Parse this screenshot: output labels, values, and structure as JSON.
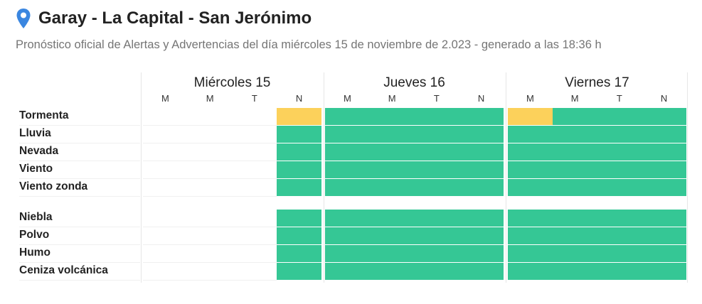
{
  "header": {
    "title": "Garay - La Capital - San Jerónimo",
    "subtitle": "Pronóstico oficial de Alertas y Advertencias del día miércoles 15 de noviembre de 2.023 - generado a las 18:36 h",
    "pin_icon": "map-pin-icon"
  },
  "colors": {
    "green": "#35c795",
    "yellow": "#fcd15b",
    "pin": "#3a86e0"
  },
  "days": [
    {
      "label": "Miércoles 15",
      "periods": [
        "M",
        "M",
        "T",
        "N"
      ]
    },
    {
      "label": "Jueves 16",
      "periods": [
        "M",
        "M",
        "T",
        "N"
      ]
    },
    {
      "label": "Viernes 17",
      "periods": [
        "M",
        "M",
        "T",
        "N"
      ]
    }
  ],
  "rows": [
    {
      "label": "Tormenta",
      "levels": [
        "",
        "",
        "",
        "yellow",
        "green",
        "green",
        "green",
        "green",
        "yellow",
        "green",
        "green",
        "green"
      ]
    },
    {
      "label": "Lluvia",
      "levels": [
        "",
        "",
        "",
        "green",
        "green",
        "green",
        "green",
        "green",
        "green",
        "green",
        "green",
        "green"
      ]
    },
    {
      "label": "Nevada",
      "levels": [
        "",
        "",
        "",
        "green",
        "green",
        "green",
        "green",
        "green",
        "green",
        "green",
        "green",
        "green"
      ]
    },
    {
      "label": "Viento",
      "levels": [
        "",
        "",
        "",
        "green",
        "green",
        "green",
        "green",
        "green",
        "green",
        "green",
        "green",
        "green"
      ]
    },
    {
      "label": "Viento zonda",
      "levels": [
        "",
        "",
        "",
        "green",
        "green",
        "green",
        "green",
        "green",
        "green",
        "green",
        "green",
        "green"
      ]
    },
    {
      "label": "Niebla",
      "levels": [
        "",
        "",
        "",
        "green",
        "green",
        "green",
        "green",
        "green",
        "green",
        "green",
        "green",
        "green"
      ]
    },
    {
      "label": "Polvo",
      "levels": [
        "",
        "",
        "",
        "green",
        "green",
        "green",
        "green",
        "green",
        "green",
        "green",
        "green",
        "green"
      ]
    },
    {
      "label": "Humo",
      "levels": [
        "",
        "",
        "",
        "green",
        "green",
        "green",
        "green",
        "green",
        "green",
        "green",
        "green",
        "green"
      ]
    },
    {
      "label": "Ceniza volcánica",
      "levels": [
        "",
        "",
        "",
        "green",
        "green",
        "green",
        "green",
        "green",
        "green",
        "green",
        "green",
        "green"
      ]
    }
  ]
}
